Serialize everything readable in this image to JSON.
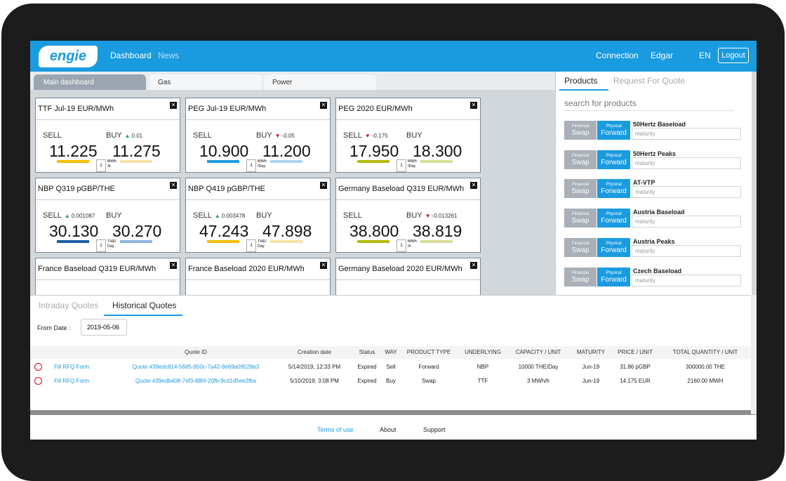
{
  "header": {
    "logo": "engie",
    "nav": [
      "Dashboard",
      "News"
    ],
    "connection": "Connection",
    "user": "Edgar",
    "language": "EN",
    "logout": "Logout"
  },
  "tabs": [
    "Main dashboard",
    "Gas",
    "Power"
  ],
  "tile_labels": {
    "sell": "SELL",
    "buy": "BUY"
  },
  "tiles": [
    {
      "title": "TTF Jul-19 EUR/MWh",
      "sell_change": null,
      "buy_change": "0.01",
      "sell": "11.225",
      "buy": "11.275",
      "qty": "1",
      "unit": "MWh /h",
      "sell_color": "#f5c000",
      "buy_color": "#fbe3a6"
    },
    {
      "title": "PEG Jul-19 EUR/MWh",
      "sell_change": null,
      "buy_change": "-0.05",
      "sell": "10.900",
      "buy": "11.200",
      "qty": "1",
      "unit": "MWh /Day",
      "sell_color": "#1a9be0",
      "buy_color": "#a9d5f2"
    },
    {
      "title": "PEG 2020 EUR/MWh",
      "sell_change": "-0.175",
      "buy_change": null,
      "sell": "17.950",
      "buy": "18.300",
      "qty": "1",
      "unit": "MWh /Day",
      "sell_color": "#b3bb0a",
      "buy_color": "#d7dd94"
    },
    {
      "title": "NBP Q319 pGBP/THE",
      "sell_change": "0.001087",
      "buy_change": null,
      "sell": "30.130",
      "buy": "30.270",
      "qty": "1",
      "unit": "THE/ Day",
      "sell_color": "#1d5ba6",
      "buy_color": "#92b3db"
    },
    {
      "title": "NBP Q419 pGBP/THE",
      "sell_change": "0.003478",
      "buy_change": null,
      "sell": "47.243",
      "buy": "47.898",
      "qty": "1",
      "unit": "THE/ Day",
      "sell_color": "#f5c000",
      "buy_color": "#fbe3a6"
    },
    {
      "title": "Germany Baseload Q319 EUR/MWh",
      "sell_change": null,
      "buy_change": "-0.013261",
      "sell": "38.800",
      "buy": "38.819",
      "qty": "1",
      "unit": "MWh /h",
      "sell_color": "#b3bb0a",
      "buy_color": "#d7dd94"
    },
    {
      "title": "France Baseload Q319 EUR/MWh"
    },
    {
      "title": "France Baseload 2020 EUR/MWh"
    },
    {
      "title": "Germany Baseload 2020 EUR/MWh"
    }
  ],
  "products_panel": {
    "tabs": [
      "Products",
      "Request For Quote"
    ],
    "search": "search for products",
    "buttons": {
      "financial": "Financial",
      "swap": "Swap",
      "physical": "Physical",
      "forward": "Forward"
    },
    "maturity": "maturity",
    "products": [
      "50Hertz Baseload",
      "50Hertz Peaks",
      "AT-VTP",
      "Austria Baseload",
      "Austria Peaks",
      "Czech Baseload"
    ]
  },
  "quotes": {
    "tabs": [
      "Intraday Quotes",
      "Historical Quotes"
    ],
    "from_date_label": "From Date :",
    "from_date": "2019-05-06",
    "columns": [
      "Quote ID",
      "Creation date",
      "Status",
      "WAY",
      "PRODUCT TYPE",
      "UNDERLYING",
      "CAPACITY / UNIT",
      "MATURITY",
      "PRICE / UNIT",
      "TOTAL QUANTITY / UNIT"
    ],
    "action": "Fill RFQ Form",
    "rows": [
      [
        "Quote #39edc814-5685-950c-7a42-9e69a09528e3",
        "5/14/2019, 12:33 PM",
        "Expired",
        "Sell",
        "Forward",
        "NBP",
        "10000 THE/Day",
        "Jun-19",
        "31.86 pGBP",
        "300000.00 THE"
      ],
      [
        "Quote #39edb408-7ef3-88f4-20fb-9cd1d5ee2fba",
        "5/10/2019, 3:08 PM",
        "Expired",
        "Buy",
        "Swap",
        "TTF",
        "3 MWh/h",
        "Jun-19",
        "14.175 EUR",
        "2160.00 MWH"
      ]
    ]
  },
  "footer": [
    "Terms of use",
    "About",
    "Support"
  ]
}
